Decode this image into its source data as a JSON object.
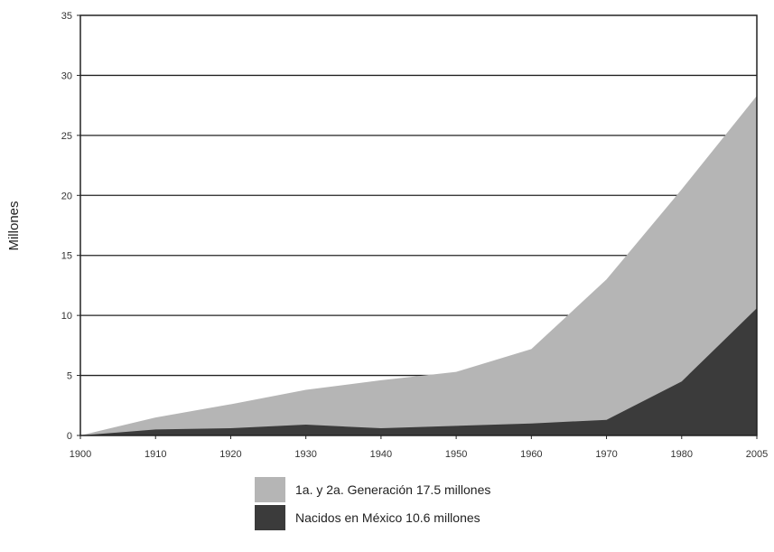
{
  "chart_data": {
    "type": "area",
    "stacked": false,
    "ylabel": "Millones",
    "xlabel": "",
    "ylim": [
      0,
      35
    ],
    "yticks": [
      0,
      5,
      10,
      15,
      20,
      25,
      30,
      35
    ],
    "xticks": [
      "1900",
      "1910",
      "1920",
      "1930",
      "1940",
      "1950",
      "1960",
      "1970",
      "1980",
      "2005"
    ],
    "grid": true,
    "legend_position": "bottom-center",
    "series": [
      {
        "name": "1a. y 2a. Generación 17.5 millones",
        "color": "#b5b5b5",
        "points": [
          {
            "x": "1900",
            "y": 0
          },
          {
            "x": "1910",
            "y": 1.5
          },
          {
            "x": "1920",
            "y": 2.6
          },
          {
            "x": "1930",
            "y": 3.8
          },
          {
            "x": "1940",
            "y": 4.6
          },
          {
            "x": "1950",
            "y": 5.3
          },
          {
            "x": "1960",
            "y": 7.2
          },
          {
            "x": "1970",
            "y": 13.0
          },
          {
            "x": "1980",
            "y": 20.5
          },
          {
            "x": "2005",
            "y": 28.3
          }
        ]
      },
      {
        "name": "Nacidos en México 10.6 millones",
        "color": "#3b3b3b",
        "points": [
          {
            "x": "1900",
            "y": 0
          },
          {
            "x": "1910",
            "y": 0.5
          },
          {
            "x": "1920",
            "y": 0.6
          },
          {
            "x": "1930",
            "y": 0.9
          },
          {
            "x": "1940",
            "y": 0.6
          },
          {
            "x": "1950",
            "y": 0.8
          },
          {
            "x": "1960",
            "y": 1.0
          },
          {
            "x": "1970",
            "y": 1.3
          },
          {
            "x": "1980",
            "y": 4.5
          },
          {
            "x": "2005",
            "y": 10.6
          }
        ]
      }
    ]
  }
}
